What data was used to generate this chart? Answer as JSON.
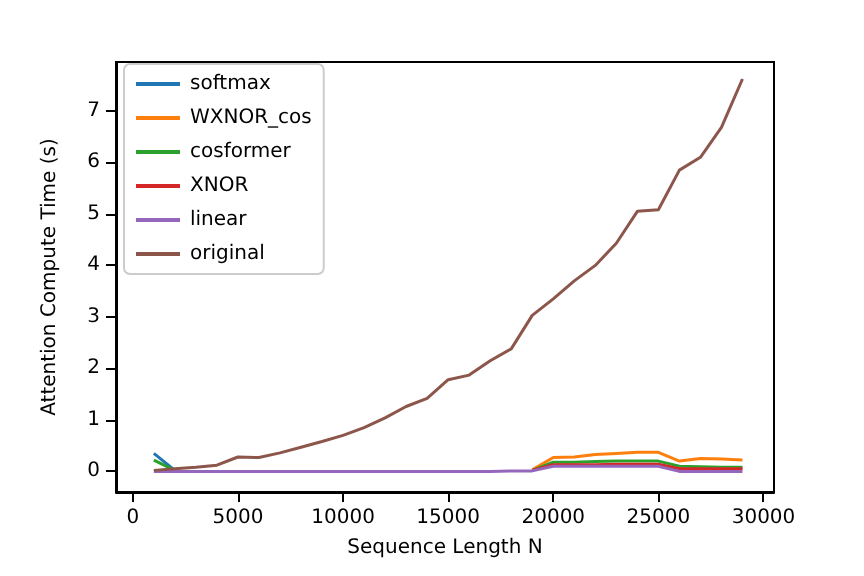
{
  "chart_data": {
    "type": "line",
    "xlabel": "Sequence Length N",
    "ylabel": "Attention Compute Time (s)",
    "x": [
      1000,
      2000,
      3000,
      4000,
      5000,
      6000,
      7000,
      8000,
      9000,
      10000,
      11000,
      12000,
      13000,
      14000,
      15000,
      16000,
      17000,
      18000,
      19000,
      20000,
      21000,
      22000,
      23000,
      24000,
      25000,
      26000,
      27000,
      28000,
      29000
    ],
    "xlim": [
      -800,
      30500
    ],
    "xticks": [
      0,
      5000,
      10000,
      15000,
      20000,
      25000,
      30000
    ],
    "ylim": [
      -0.4,
      7.95
    ],
    "yticks": [
      0,
      1,
      2,
      3,
      4,
      5,
      6,
      7
    ],
    "legend": "top left",
    "grid": false,
    "series": [
      {
        "name": "softmax",
        "color": "#1f77b4",
        "values": [
          0.35,
          0.02,
          null,
          null,
          null,
          null,
          null,
          null,
          null,
          null,
          null,
          null,
          null,
          null,
          null,
          null,
          null,
          null,
          null,
          null,
          null,
          null,
          null,
          null,
          null,
          null,
          null,
          null,
          null
        ]
      },
      {
        "name": "WXNOR_cos",
        "color": "#ff7f0e",
        "values": [
          null,
          null,
          null,
          null,
          null,
          null,
          null,
          null,
          null,
          null,
          null,
          null,
          null,
          null,
          null,
          null,
          null,
          null,
          0.03,
          0.27,
          0.28,
          0.33,
          0.35,
          0.37,
          0.37,
          0.2,
          0.25,
          0.24,
          0.22
        ]
      },
      {
        "name": "cosformer",
        "color": "#2ca02c",
        "values": [
          0.22,
          0.02,
          null,
          null,
          null,
          null,
          null,
          null,
          null,
          null,
          null,
          null,
          null,
          null,
          null,
          null,
          null,
          null,
          0.02,
          0.18,
          0.18,
          0.19,
          0.2,
          0.2,
          0.2,
          0.1,
          0.09,
          0.08,
          0.08
        ]
      },
      {
        "name": "XNOR",
        "color": "#d62728",
        "values": [
          null,
          null,
          null,
          null,
          null,
          null,
          null,
          null,
          null,
          null,
          null,
          null,
          null,
          null,
          null,
          null,
          null,
          null,
          0.02,
          0.13,
          0.13,
          0.13,
          0.14,
          0.14,
          0.14,
          0.05,
          0.05,
          0.05,
          0.05
        ]
      },
      {
        "name": "linear",
        "color": "#9467bd",
        "values": [
          0.0,
          0.0,
          0.0,
          0.0,
          0.0,
          0.0,
          0.0,
          0.0,
          0.0,
          0.0,
          0.0,
          0.0,
          0.0,
          0.0,
          0.0,
          0.0,
          0.0,
          0.01,
          0.01,
          0.1,
          0.1,
          0.1,
          0.1,
          0.1,
          0.1,
          0.0,
          0.0,
          0.0,
          0.0
        ]
      },
      {
        "name": "original",
        "color": "#8c564b",
        "values": [
          0.02,
          0.05,
          0.08,
          0.12,
          0.28,
          0.27,
          0.36,
          0.47,
          0.58,
          0.7,
          0.85,
          1.04,
          1.26,
          1.42,
          1.78,
          1.87,
          2.15,
          2.38,
          3.03,
          3.35,
          3.7,
          4.0,
          4.43,
          5.05,
          5.08,
          5.85,
          6.1,
          6.68,
          7.62
        ]
      }
    ]
  }
}
